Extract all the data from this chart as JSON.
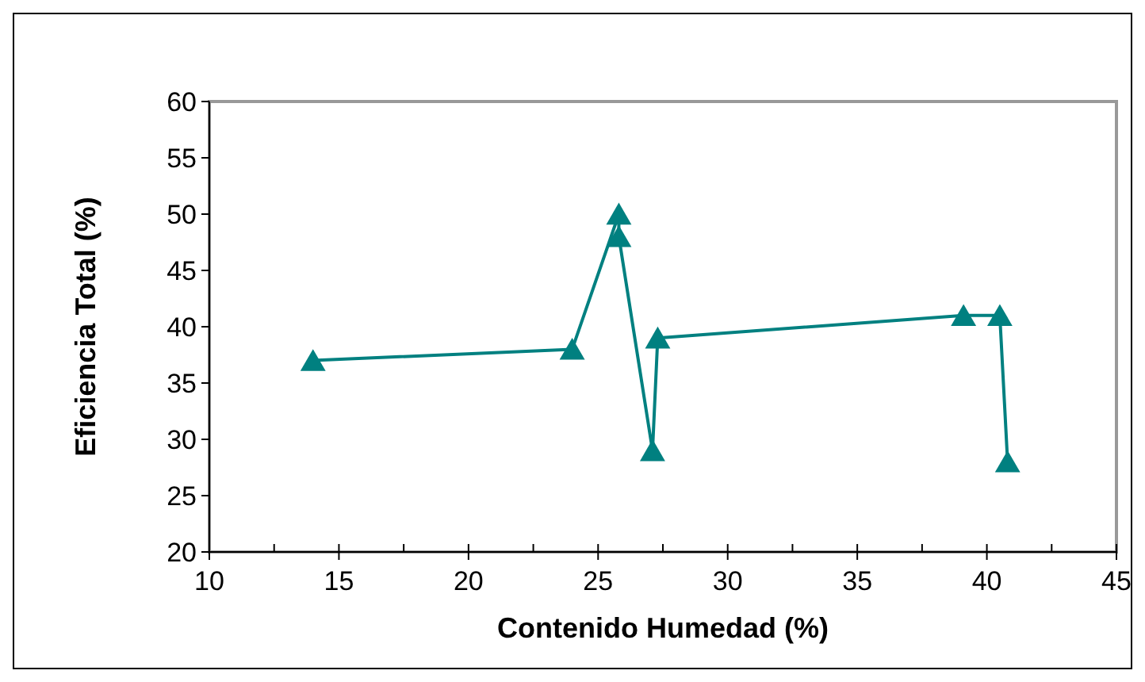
{
  "chart_data": {
    "type": "line",
    "xlabel": "Contenido Humedad (%)",
    "ylabel": "Eficiencia Total (%)",
    "series": [
      {
        "color": "#008080",
        "x": [
          14,
          24,
          25.8,
          25.8,
          27.1,
          27.3,
          39.1,
          40.5,
          40.8
        ],
        "values": [
          37,
          38,
          50,
          48,
          29,
          39,
          41,
          41,
          28
        ]
      }
    ],
    "xlim": [
      10,
      45
    ],
    "xticks": [
      10,
      15,
      20,
      25,
      30,
      35,
      40,
      45
    ],
    "ylim": [
      20,
      60
    ],
    "yticks": [
      20,
      25,
      30,
      35,
      40,
      45,
      50,
      55,
      60
    ],
    "grid": false,
    "marker": "triangle",
    "line_style": "solid"
  }
}
